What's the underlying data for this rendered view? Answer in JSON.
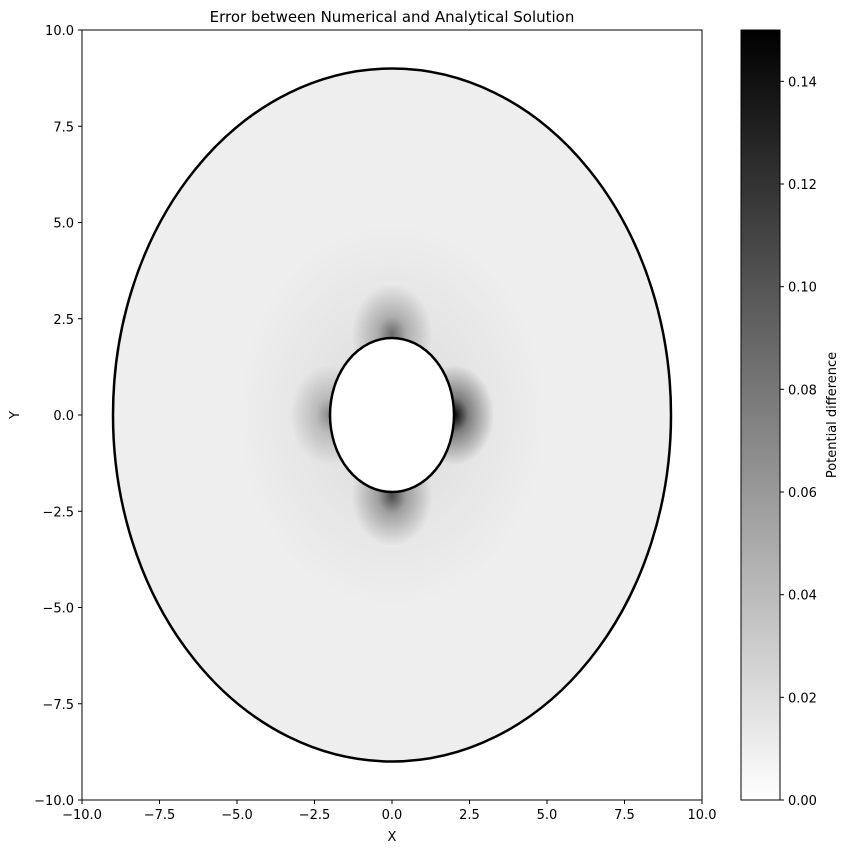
{
  "chart_data": {
    "type": "heatmap",
    "title": "Error between Numerical and Analytical Solution",
    "xlabel": "X",
    "ylabel": "Y",
    "xlim": [
      -10,
      10
    ],
    "ylim": [
      -10,
      10
    ],
    "x_ticks": [
      -10,
      -7.5,
      -5,
      -2.5,
      0,
      2.5,
      5,
      7.5,
      10
    ],
    "x_tick_labels": [
      "−10.0",
      "−7.5",
      "−5.0",
      "−2.5",
      "0.0",
      "2.5",
      "5.0",
      "7.5",
      "10.0"
    ],
    "y_ticks": [
      -10,
      -7.5,
      -5,
      -2.5,
      0,
      2.5,
      5,
      7.5,
      10
    ],
    "y_tick_labels": [
      "−10.0",
      "−7.5",
      "−5.0",
      "−2.5",
      "0.0",
      "2.5",
      "5.0",
      "7.5",
      "10.0"
    ],
    "colormap": "gray_r",
    "colorbar": {
      "label": "Potential difference",
      "range": [
        0,
        0.15
      ],
      "ticks": [
        0,
        0.02,
        0.04,
        0.06,
        0.08,
        0.1,
        0.12,
        0.14
      ],
      "tick_labels": [
        "0.00",
        "0.02",
        "0.04",
        "0.06",
        "0.08",
        "0.10",
        "0.12",
        "0.14"
      ]
    },
    "domain": {
      "shape": "annulus",
      "outer_boundary": {
        "center": [
          0,
          0
        ],
        "radius": 9
      },
      "inner_boundary": {
        "center": [
          0,
          0
        ],
        "radius": 2
      },
      "boundary_color": "#000000"
    },
    "error_hotspots": [
      {
        "x": 2,
        "y": 0,
        "value": 0.15
      },
      {
        "x": 0,
        "y": -2.1,
        "value": 0.1
      },
      {
        "x": 0,
        "y": 2.1,
        "value": 0.08
      },
      {
        "x": -2,
        "y": 0,
        "value": 0.06
      }
    ],
    "background_error": 0.01,
    "grid": false,
    "legend": "none"
  }
}
